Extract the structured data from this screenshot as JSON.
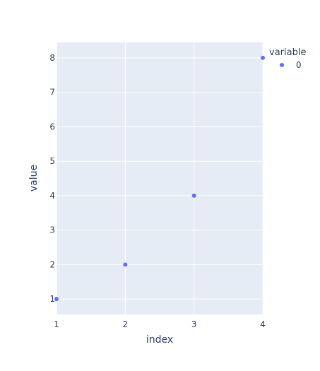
{
  "chart_data": {
    "type": "scatter",
    "xlabel": "index",
    "ylabel": "value",
    "xlim": [
      1,
      4
    ],
    "ylim": [
      0.55,
      8.45
    ],
    "x_ticks": [
      1,
      2,
      3,
      4
    ],
    "y_ticks": [
      1,
      2,
      3,
      4,
      5,
      6,
      7,
      8
    ],
    "grid": true,
    "legend": {
      "title": "variable",
      "placement": "top-right"
    },
    "series": [
      {
        "name": "0",
        "color": "#636efa",
        "x": [
          1,
          2,
          3,
          4
        ],
        "y": [
          1,
          2,
          4,
          8
        ]
      }
    ]
  }
}
